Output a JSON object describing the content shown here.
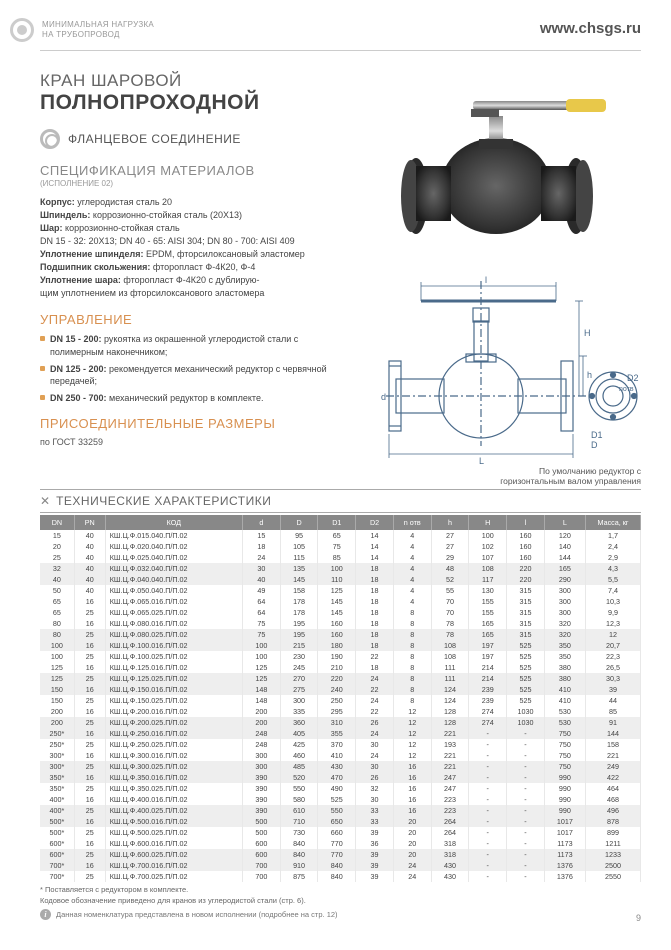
{
  "header": {
    "tagline1": "МИНИМАЛЬНАЯ НАГРУЗКА",
    "tagline2": "НА ТРУБОПРОВОД",
    "url": "www.chsgs.ru"
  },
  "title": {
    "line1": "КРАН ШАРОВОЙ",
    "line2": "ПОЛНОПРОХОДНОЙ"
  },
  "connection": "ФЛАНЦЕВОЕ СОЕДИНЕНИЕ",
  "materials": {
    "heading": "СПЕЦИФИКАЦИЯ МАТЕРИАЛОВ",
    "sub": "(ИСПОЛНЕНИЕ 02)",
    "lines": [
      {
        "b": "Корпус:",
        "t": " углеродистая сталь 20"
      },
      {
        "b": "Шпиндель:",
        "t": " коррозионно-стойкая сталь (20Х13)"
      },
      {
        "b": "Шар:",
        "t": " коррозионно-стойкая сталь"
      },
      {
        "b": "",
        "t": "DN 15 - 32: 20Х13; DN 40 - 65: AISI 304; DN 80 - 700: AISI 409"
      },
      {
        "b": "Уплотнение шпинделя:",
        "t": " EPDM, фторсилоксановый эластомер"
      },
      {
        "b": "Подшипник скольжения:",
        "t": " фторопласт Ф-4К20, Ф-4"
      },
      {
        "b": "Уплотнение шара:",
        "t": " фторопласт Ф-4К20 с дублирую-"
      },
      {
        "b": "",
        "t": "щим уплотнением из фторсилоксанового эластомера"
      }
    ]
  },
  "control": {
    "heading": "УПРАВЛЕНИЕ",
    "items": [
      {
        "b": "DN 15 - 200:",
        "t": " рукоятка из окрашенной углеродистой стали с полимерным наконечником;"
      },
      {
        "b": "DN 125 - 200:",
        "t": " рекомендуется механический редуктор с червячной передачей;"
      },
      {
        "b": "DN 250 - 700:",
        "t": " механический редуктор в комплекте."
      }
    ]
  },
  "dims": {
    "heading": "ПРИСОЕДИНИТЕЛЬНЫЕ РАЗМЕРЫ",
    "gost": "по ГОСТ 33259"
  },
  "note": {
    "l1": "По умолчанию редуктор с",
    "l2": "горизонтальным валом управления"
  },
  "tech_heading": "ТЕХНИЧЕСКИЕ ХАРАКТЕРИСТИКИ",
  "table": {
    "columns": [
      "DN",
      "PN",
      "КОД",
      "d",
      "D",
      "D1",
      "D2",
      "n отв",
      "h",
      "H",
      "l",
      "L",
      "Масса, кг"
    ],
    "col_widths": [
      "5%",
      "4.5%",
      "20%",
      "5.5%",
      "5.5%",
      "5.5%",
      "5.5%",
      "5.5%",
      "5.5%",
      "5.5%",
      "5.5%",
      "6%",
      "8%"
    ],
    "rows": [
      [
        "15",
        "40",
        "КШ.Ц.Ф.015.040.П/П.02",
        "15",
        "95",
        "65",
        "14",
        "4",
        "27",
        "100",
        "160",
        "120",
        "1,7"
      ],
      [
        "20",
        "40",
        "КШ.Ц.Ф.020.040.П/П.02",
        "18",
        "105",
        "75",
        "14",
        "4",
        "27",
        "102",
        "160",
        "140",
        "2,4"
      ],
      [
        "25",
        "40",
        "КШ.Ц.Ф.025.040.П/П.02",
        "24",
        "115",
        "85",
        "14",
        "4",
        "29",
        "107",
        "160",
        "144",
        "2,9"
      ],
      [
        "32",
        "40",
        "КШ.Ц.Ф.032.040.П/П.02",
        "30",
        "135",
        "100",
        "18",
        "4",
        "48",
        "108",
        "220",
        "165",
        "4,3"
      ],
      [
        "40",
        "40",
        "КШ.Ц.Ф.040.040.П/П.02",
        "40",
        "145",
        "110",
        "18",
        "4",
        "52",
        "117",
        "220",
        "290",
        "5,5"
      ],
      [
        "50",
        "40",
        "КШ.Ц.Ф.050.040.П/П.02",
        "49",
        "158",
        "125",
        "18",
        "4",
        "55",
        "130",
        "315",
        "300",
        "7,4"
      ],
      [
        "65",
        "16",
        "КШ.Ц.Ф.065.016.П/П.02",
        "64",
        "178",
        "145",
        "18",
        "4",
        "70",
        "155",
        "315",
        "300",
        "10,3"
      ],
      [
        "65",
        "25",
        "КШ.Ц.Ф.065.025.П/П.02",
        "64",
        "178",
        "145",
        "18",
        "8",
        "70",
        "155",
        "315",
        "300",
        "9,9"
      ],
      [
        "80",
        "16",
        "КШ.Ц.Ф.080.016.П/П.02",
        "75",
        "195",
        "160",
        "18",
        "8",
        "78",
        "165",
        "315",
        "320",
        "12,3"
      ],
      [
        "80",
        "25",
        "КШ.Ц.Ф.080.025.П/П.02",
        "75",
        "195",
        "160",
        "18",
        "8",
        "78",
        "165",
        "315",
        "320",
        "12"
      ],
      [
        "100",
        "16",
        "КШ.Ц.Ф.100.016.П/П.02",
        "100",
        "215",
        "180",
        "18",
        "8",
        "108",
        "197",
        "525",
        "350",
        "20,7"
      ],
      [
        "100",
        "25",
        "КШ.Ц.Ф.100.025.П/П.02",
        "100",
        "230",
        "190",
        "22",
        "8",
        "108",
        "197",
        "525",
        "350",
        "22,3"
      ],
      [
        "125",
        "16",
        "КШ.Ц.Ф.125.016.П/П.02",
        "125",
        "245",
        "210",
        "18",
        "8",
        "111",
        "214",
        "525",
        "380",
        "26,5"
      ],
      [
        "125",
        "25",
        "КШ.Ц.Ф.125.025.П/П.02",
        "125",
        "270",
        "220",
        "24",
        "8",
        "111",
        "214",
        "525",
        "380",
        "30,3"
      ],
      [
        "150",
        "16",
        "КШ.Ц.Ф.150.016.П/П.02",
        "148",
        "275",
        "240",
        "22",
        "8",
        "124",
        "239",
        "525",
        "410",
        "39"
      ],
      [
        "150",
        "25",
        "КШ.Ц.Ф.150.025.П/П.02",
        "148",
        "300",
        "250",
        "24",
        "8",
        "124",
        "239",
        "525",
        "410",
        "44"
      ],
      [
        "200",
        "16",
        "КШ.Ц.Ф.200.016.П/П.02",
        "200",
        "335",
        "295",
        "22",
        "12",
        "128",
        "274",
        "1030",
        "530",
        "85"
      ],
      [
        "200",
        "25",
        "КШ.Ц.Ф.200.025.П/П.02",
        "200",
        "360",
        "310",
        "26",
        "12",
        "128",
        "274",
        "1030",
        "530",
        "91"
      ],
      [
        "250*",
        "16",
        "КШ.Ц.Ф.250.016.П/П.02",
        "248",
        "405",
        "355",
        "24",
        "12",
        "221",
        "-",
        "-",
        "750",
        "144"
      ],
      [
        "250*",
        "25",
        "КШ.Ц.Ф.250.025.П/П.02",
        "248",
        "425",
        "370",
        "30",
        "12",
        "193",
        "-",
        "-",
        "750",
        "158"
      ],
      [
        "300*",
        "16",
        "КШ.Ц.Ф.300.016.П/П.02",
        "300",
        "460",
        "410",
        "24",
        "12",
        "221",
        "-",
        "-",
        "750",
        "221"
      ],
      [
        "300*",
        "25",
        "КШ.Ц.Ф.300.025.П/П.02",
        "300",
        "485",
        "430",
        "30",
        "16",
        "221",
        "-",
        "-",
        "750",
        "249"
      ],
      [
        "350*",
        "16",
        "КШ.Ц.Ф.350.016.П/П.02",
        "390",
        "520",
        "470",
        "26",
        "16",
        "247",
        "-",
        "-",
        "990",
        "422"
      ],
      [
        "350*",
        "25",
        "КШ.Ц.Ф.350.025.П/П.02",
        "390",
        "550",
        "490",
        "32",
        "16",
        "247",
        "-",
        "-",
        "990",
        "464"
      ],
      [
        "400*",
        "16",
        "КШ.Ц.Ф.400.016.П/П.02",
        "390",
        "580",
        "525",
        "30",
        "16",
        "223",
        "-",
        "-",
        "990",
        "468"
      ],
      [
        "400*",
        "25",
        "КШ.Ц.Ф.400.025.П/П.02",
        "390",
        "610",
        "550",
        "33",
        "16",
        "223",
        "-",
        "-",
        "990",
        "496"
      ],
      [
        "500*",
        "16",
        "КШ.Ц.Ф.500.016.П/П.02",
        "500",
        "710",
        "650",
        "33",
        "20",
        "264",
        "-",
        "-",
        "1017",
        "878"
      ],
      [
        "500*",
        "25",
        "КШ.Ц.Ф.500.025.П/П.02",
        "500",
        "730",
        "660",
        "39",
        "20",
        "264",
        "-",
        "-",
        "1017",
        "899"
      ],
      [
        "600*",
        "16",
        "КШ.Ц.Ф.600.016.П/П.02",
        "600",
        "840",
        "770",
        "36",
        "20",
        "318",
        "-",
        "-",
        "1173",
        "1211"
      ],
      [
        "600*",
        "25",
        "КШ.Ц.Ф.600.025.П/П.02",
        "600",
        "840",
        "770",
        "39",
        "20",
        "318",
        "-",
        "-",
        "1173",
        "1233"
      ],
      [
        "700*",
        "16",
        "КШ.Ц.Ф.700.016.П/П.02",
        "700",
        "910",
        "840",
        "39",
        "24",
        "430",
        "-",
        "-",
        "1376",
        "2500"
      ],
      [
        "700*",
        "25",
        "КШ.Ц.Ф.700.025.П/П.02",
        "700",
        "875",
        "840",
        "39",
        "24",
        "430",
        "-",
        "-",
        "1376",
        "2550"
      ]
    ],
    "shaded_rows": [
      3,
      4,
      9,
      10,
      13,
      14,
      17,
      18,
      21,
      22,
      25,
      26,
      29,
      30
    ]
  },
  "footnotes": {
    "asterisk": "* Поставляется с редуктором в комплекте.",
    "coding": "Кодовое обозначение приведено для кранов из углеродистой стали (стр. 6).",
    "info": "Данная номенклатура представлена в новом исполнении (подробнее на стр. 12)"
  },
  "page_number": "9",
  "diagram_labels": {
    "l": "l",
    "H": "H",
    "h": "h",
    "d": "d",
    "D1": "D1",
    "D": "D",
    "D2": "D2",
    "notv": "nотв",
    "L": "L"
  }
}
